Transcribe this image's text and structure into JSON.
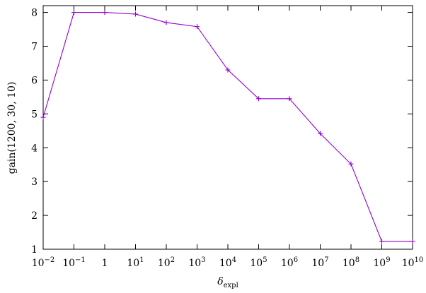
{
  "chart_data": {
    "type": "line",
    "xscale": "log",
    "xlabel": "δ",
    "xlabel_sub": "expl",
    "ylabel": "gain(1200, 30, 10)",
    "xlim": [
      0.01,
      10000000000
    ],
    "ylim": [
      1,
      8.2
    ],
    "grid": false,
    "line_color": "#9400d3",
    "x_ticks": [
      {
        "value": 0.01,
        "base": "10",
        "exp": "−2"
      },
      {
        "value": 0.1,
        "base": "10",
        "exp": "−1"
      },
      {
        "value": 1,
        "base": "1",
        "exp": ""
      },
      {
        "value": 10,
        "base": "10",
        "exp": "1"
      },
      {
        "value": 100,
        "base": "10",
        "exp": "2"
      },
      {
        "value": 1000,
        "base": "10",
        "exp": "3"
      },
      {
        "value": 10000,
        "base": "10",
        "exp": "4"
      },
      {
        "value": 100000,
        "base": "10",
        "exp": "5"
      },
      {
        "value": 1000000,
        "base": "10",
        "exp": "6"
      },
      {
        "value": 10000000,
        "base": "10",
        "exp": "7"
      },
      {
        "value": 100000000,
        "base": "10",
        "exp": "8"
      },
      {
        "value": 1000000000,
        "base": "10",
        "exp": "9"
      },
      {
        "value": 10000000000,
        "base": "10",
        "exp": "10"
      }
    ],
    "y_ticks": [
      1,
      2,
      3,
      4,
      5,
      6,
      7,
      8
    ],
    "series": [
      {
        "x": [
          0.01,
          0.1,
          1,
          10,
          100,
          1000,
          10000,
          100000,
          1000000,
          10000000,
          100000000,
          1000000000,
          10000000000
        ],
        "y": [
          4.9,
          8.0,
          8.0,
          7.95,
          7.7,
          7.58,
          6.3,
          5.45,
          5.45,
          4.42,
          3.52,
          1.23,
          1.23
        ]
      }
    ]
  }
}
